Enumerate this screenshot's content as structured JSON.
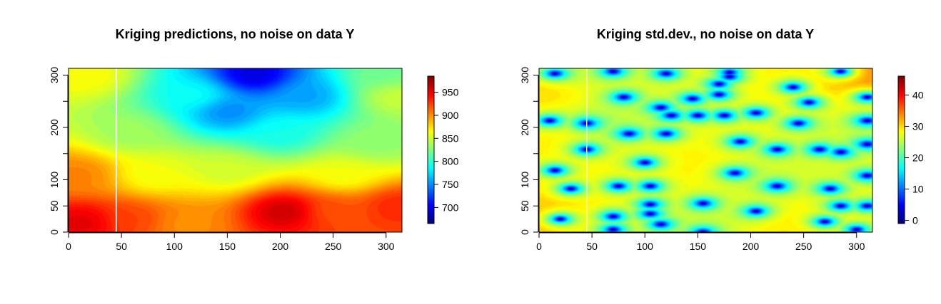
{
  "chart_data": [
    {
      "type": "heatmap",
      "title": "Kriging predictions, no noise on data Y",
      "xlabel": "",
      "ylabel": "",
      "xlim": [
        0,
        315
      ],
      "ylim": [
        0,
        313
      ],
      "x_ticks": [
        0,
        50,
        100,
        150,
        200,
        250,
        300
      ],
      "y_ticks": [
        0,
        50,
        100,
        200,
        300
      ],
      "y_minor_ticks": [
        150,
        250
      ],
      "zlim": [
        665,
        985
      ],
      "colorbar_ticks": [
        700,
        750,
        800,
        850,
        900,
        950
      ],
      "vertical_line_x": 45,
      "surface_anchors": [
        {
          "x": 15,
          "y": 20,
          "z": 955
        },
        {
          "x": 60,
          "y": 25,
          "z": 925
        },
        {
          "x": 110,
          "y": 15,
          "z": 900
        },
        {
          "x": 205,
          "y": 40,
          "z": 965
        },
        {
          "x": 250,
          "y": 40,
          "z": 920
        },
        {
          "x": 310,
          "y": 50,
          "z": 935
        },
        {
          "x": 10,
          "y": 110,
          "z": 905
        },
        {
          "x": 80,
          "y": 110,
          "z": 860
        },
        {
          "x": 150,
          "y": 120,
          "z": 850
        },
        {
          "x": 260,
          "y": 110,
          "z": 860
        },
        {
          "x": 60,
          "y": 190,
          "z": 835
        },
        {
          "x": 200,
          "y": 190,
          "z": 790
        },
        {
          "x": 290,
          "y": 170,
          "z": 830
        },
        {
          "x": 15,
          "y": 300,
          "z": 865
        },
        {
          "x": 120,
          "y": 260,
          "z": 790
        },
        {
          "x": 175,
          "y": 300,
          "z": 690
        },
        {
          "x": 150,
          "y": 230,
          "z": 745
        },
        {
          "x": 225,
          "y": 260,
          "z": 755
        },
        {
          "x": 310,
          "y": 260,
          "z": 850
        },
        {
          "x": 300,
          "y": 300,
          "z": 820
        }
      ]
    },
    {
      "type": "heatmap",
      "title": "Kriging std.dev., no noise on data Y",
      "xlabel": "",
      "ylabel": "",
      "xlim": [
        0,
        315
      ],
      "ylim": [
        0,
        313
      ],
      "x_ticks": [
        0,
        50,
        100,
        150,
        200,
        250,
        300
      ],
      "y_ticks": [
        0,
        50,
        100,
        200,
        300
      ],
      "y_minor_ticks": [
        150,
        250
      ],
      "zlim": [
        -1,
        46
      ],
      "colorbar_ticks": [
        0,
        10,
        20,
        30,
        40
      ],
      "vertical_line_x": 45,
      "zero_points": [
        {
          "x": 15,
          "y": 303
        },
        {
          "x": 70,
          "y": 307
        },
        {
          "x": 120,
          "y": 303
        },
        {
          "x": 180,
          "y": 305
        },
        {
          "x": 180,
          "y": 297
        },
        {
          "x": 285,
          "y": 307
        },
        {
          "x": 80,
          "y": 258
        },
        {
          "x": 145,
          "y": 255
        },
        {
          "x": 170,
          "y": 283
        },
        {
          "x": 170,
          "y": 263
        },
        {
          "x": 240,
          "y": 277
        },
        {
          "x": 255,
          "y": 248
        },
        {
          "x": 310,
          "y": 258
        },
        {
          "x": 10,
          "y": 213
        },
        {
          "x": 45,
          "y": 208
        },
        {
          "x": 85,
          "y": 188
        },
        {
          "x": 120,
          "y": 188
        },
        {
          "x": 115,
          "y": 238
        },
        {
          "x": 125,
          "y": 223
        },
        {
          "x": 150,
          "y": 223
        },
        {
          "x": 175,
          "y": 223
        },
        {
          "x": 205,
          "y": 228
        },
        {
          "x": 245,
          "y": 208
        },
        {
          "x": 310,
          "y": 213
        },
        {
          "x": 45,
          "y": 158
        },
        {
          "x": 190,
          "y": 173
        },
        {
          "x": 225,
          "y": 158
        },
        {
          "x": 265,
          "y": 158
        },
        {
          "x": 285,
          "y": 153
        },
        {
          "x": 310,
          "y": 168
        },
        {
          "x": 100,
          "y": 133
        },
        {
          "x": 15,
          "y": 118
        },
        {
          "x": 185,
          "y": 113
        },
        {
          "x": 310,
          "y": 108
        },
        {
          "x": 30,
          "y": 83
        },
        {
          "x": 75,
          "y": 88
        },
        {
          "x": 105,
          "y": 88
        },
        {
          "x": 225,
          "y": 88
        },
        {
          "x": 275,
          "y": 83
        },
        {
          "x": 20,
          "y": 25
        },
        {
          "x": 70,
          "y": 30
        },
        {
          "x": 105,
          "y": 53
        },
        {
          "x": 105,
          "y": 35
        },
        {
          "x": 155,
          "y": 55
        },
        {
          "x": 205,
          "y": 40
        },
        {
          "x": 285,
          "y": 50
        },
        {
          "x": 310,
          "y": 50
        },
        {
          "x": 70,
          "y": 5
        },
        {
          "x": 115,
          "y": 15
        },
        {
          "x": 155,
          "y": 0
        },
        {
          "x": 270,
          "y": 20
        },
        {
          "x": 300,
          "y": 5
        }
      ],
      "surface_anchors": [
        {
          "x": 145,
          "y": 130,
          "z": 33
        },
        {
          "x": 5,
          "y": 180,
          "z": 33
        },
        {
          "x": 5,
          "y": 270,
          "z": 36
        },
        {
          "x": 3,
          "y": 20,
          "z": 38
        },
        {
          "x": 312,
          "y": 310,
          "z": 42
        },
        {
          "x": 245,
          "y": 310,
          "z": 32
        },
        {
          "x": 45,
          "y": 300,
          "z": 28
        },
        {
          "x": 160,
          "y": 20,
          "z": 28
        },
        {
          "x": 300,
          "y": 195,
          "z": 28
        },
        {
          "x": 210,
          "y": 105,
          "z": 28
        },
        {
          "x": 60,
          "y": 215,
          "z": 26
        },
        {
          "x": 240,
          "y": 5,
          "z": 34
        },
        {
          "x": 60,
          "y": 3,
          "z": 30
        }
      ]
    }
  ]
}
